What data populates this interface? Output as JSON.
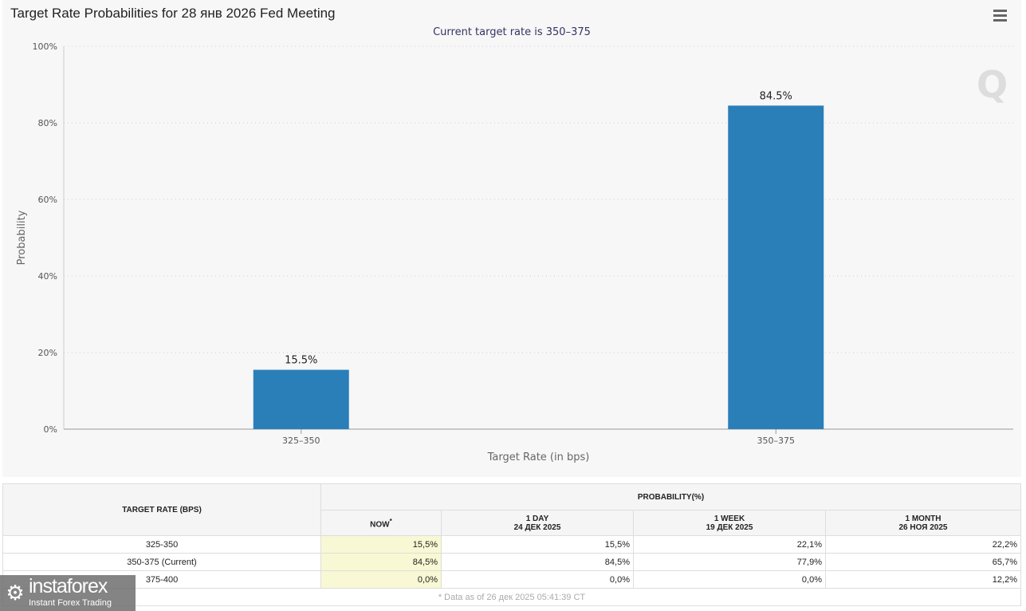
{
  "title": "Target Rate Probabilities for 28 янв 2026 Fed Meeting",
  "subtitle": "Current target rate is 350–375",
  "menu_icon": "hamburger-icon",
  "chart_data": {
    "type": "bar",
    "title": "Target Rate Probabilities for 28 янв 2026 Fed Meeting",
    "subtitle": "Current target rate is 350–375",
    "categories": [
      "325–350",
      "350–375"
    ],
    "values": [
      15.5,
      84.5
    ],
    "data_labels": [
      "15.5%",
      "84.5%"
    ],
    "xlabel": "Target Rate (in bps)",
    "ylabel": "Probability",
    "ylim": [
      0,
      100
    ],
    "yticks": [
      "0%",
      "20%",
      "40%",
      "60%",
      "80%",
      "100%"
    ],
    "grid": true,
    "bar_color": "#2b7fb8"
  },
  "table": {
    "col_target": "TARGET RATE (BPS)",
    "col_prob": "PROBABILITY(%)",
    "sub": [
      {
        "l1": "NOW",
        "l2": ""
      },
      {
        "l1": "1 DAY",
        "l2": "24 ДЕК 2025"
      },
      {
        "l1": "1 WEEK",
        "l2": "19 ДЕК 2025"
      },
      {
        "l1": "1 MONTH",
        "l2": "26 НОЯ 2025"
      }
    ],
    "now_mark": "*",
    "rows": [
      {
        "rate": "325-350",
        "v": [
          "15,5%",
          "15,5%",
          "22,1%",
          "22,2%"
        ]
      },
      {
        "rate": "350-375 (Current)",
        "v": [
          "84,5%",
          "84,5%",
          "77,9%",
          "65,7%"
        ]
      },
      {
        "rate": "375-400",
        "v": [
          "0,0%",
          "0,0%",
          "0,0%",
          "12,2%"
        ]
      }
    ],
    "footnote": "* Data as of 26 дек 2025 05:41:39 CT"
  },
  "logo": {
    "name": "instaforex",
    "tagline": "Instant Forex Trading"
  }
}
